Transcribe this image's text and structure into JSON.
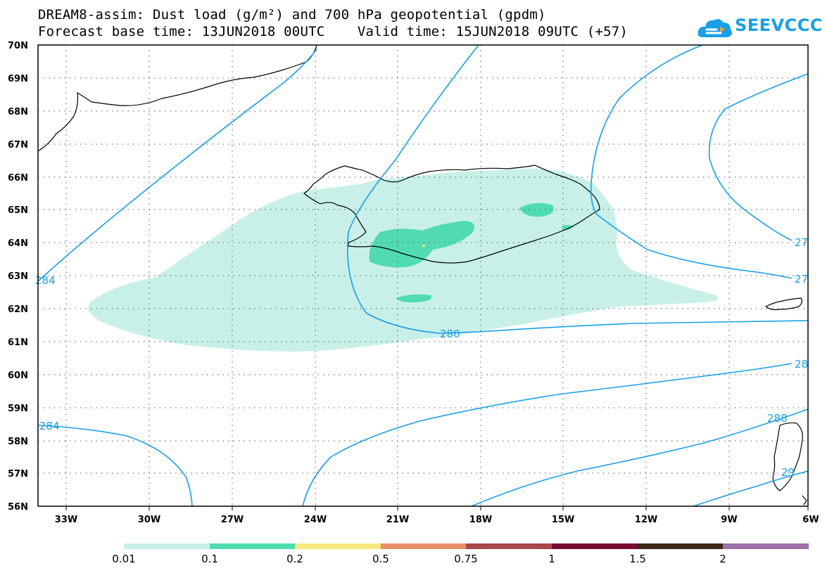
{
  "title": {
    "line1": "DREAM8-assim: Dust load (g/m²) and 700 hPa geopotential (gpdm)",
    "line2": "Forecast base time: 13JUN2018 00UTC    Valid time: 15JUN2018 09UTC (+57)"
  },
  "logo": {
    "text": "SEEVCCC",
    "icon": "cloud-icon",
    "color": "#1aa0e6"
  },
  "map": {
    "lat_labels": [
      "70N",
      "69N",
      "68N",
      "67N",
      "66N",
      "65N",
      "64N",
      "63N",
      "62N",
      "61N",
      "60N",
      "59N",
      "58N",
      "57N",
      "56N"
    ],
    "lon_labels": [
      "33W",
      "30W",
      "27W",
      "24W",
      "21W",
      "18W",
      "15W",
      "12W",
      "9W",
      "6W"
    ],
    "lat_range": [
      56,
      70
    ],
    "lon_range": [
      -34.5,
      -6
    ],
    "grid": "dotted",
    "contour_labels": [
      "284",
      "280",
      "284",
      "288",
      "27",
      "27",
      "28",
      "29"
    ],
    "contour_color": "#1a9ee8"
  },
  "colorbar": {
    "labels": [
      "0.01",
      "0.1",
      "0.2",
      "0.5",
      "0.75",
      "1",
      "1.5",
      "2"
    ],
    "colors": [
      "#c8f0e8",
      "#50dcb0",
      "#f8e880",
      "#e8906c",
      "#a8484a",
      "#780c30",
      "#3c2818",
      "#9c70a8"
    ]
  }
}
